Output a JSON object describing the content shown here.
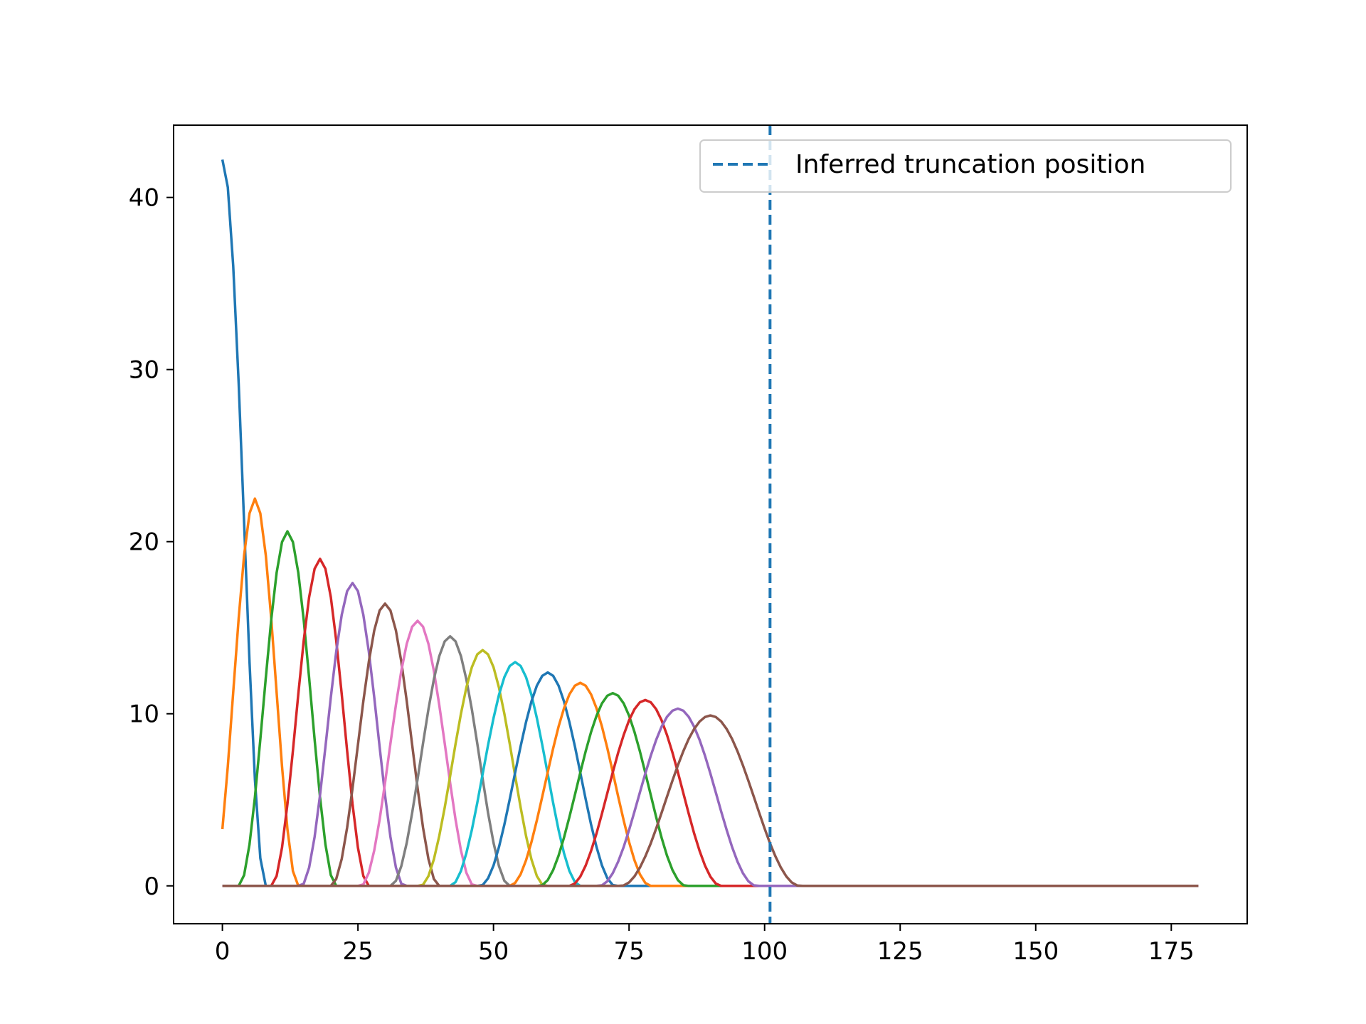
{
  "chart_data": {
    "type": "line",
    "title": "",
    "xlabel": "",
    "ylabel": "",
    "xlim": [
      -9,
      189
    ],
    "ylim": [
      -2.2,
      44.2
    ],
    "x_ticks": [
      0,
      25,
      50,
      75,
      100,
      125,
      150,
      175
    ],
    "y_ticks": [
      0,
      10,
      20,
      30,
      40
    ],
    "x_range": [
      0,
      180
    ],
    "grid": false,
    "legend": {
      "location": "top-right",
      "entries": [
        "Inferred truncation position"
      ]
    },
    "series": [
      {
        "color": "#1f77b4",
        "center": 0,
        "peak": 42.2,
        "half_width": 8
      },
      {
        "color": "#ff7f0e",
        "center": 6,
        "peak": 22.5,
        "half_width": 8
      },
      {
        "color": "#2ca02c",
        "center": 12,
        "peak": 20.6,
        "half_width": 9
      },
      {
        "color": "#d62728",
        "center": 18,
        "peak": 19.0,
        "half_width": 9
      },
      {
        "color": "#9467bd",
        "center": 24,
        "peak": 17.6,
        "half_width": 9.5
      },
      {
        "color": "#8c564b",
        "center": 30,
        "peak": 16.4,
        "half_width": 10
      },
      {
        "color": "#e377c2",
        "center": 36,
        "peak": 15.4,
        "half_width": 10.5
      },
      {
        "color": "#7f7f7f",
        "center": 42,
        "peak": 14.5,
        "half_width": 11
      },
      {
        "color": "#bcbd22",
        "center": 48,
        "peak": 13.7,
        "half_width": 11.5
      },
      {
        "color": "#17becf",
        "center": 54,
        "peak": 13.0,
        "half_width": 12
      },
      {
        "color": "#1f77b4",
        "center": 60,
        "peak": 12.4,
        "half_width": 12.5
      },
      {
        "color": "#ff7f0e",
        "center": 66,
        "peak": 11.8,
        "half_width": 13
      },
      {
        "color": "#2ca02c",
        "center": 72,
        "peak": 11.2,
        "half_width": 13.5
      },
      {
        "color": "#d62728",
        "center": 78,
        "peak": 10.8,
        "half_width": 14
      },
      {
        "color": "#9467bd",
        "center": 84,
        "peak": 10.3,
        "half_width": 14.5
      },
      {
        "color": "#8c564b",
        "center": 90,
        "peak": 9.9,
        "half_width": 16.5
      }
    ],
    "vline": {
      "x": 101,
      "color": "#1f77b4",
      "style": "dashed",
      "label": "Inferred truncation position"
    }
  }
}
